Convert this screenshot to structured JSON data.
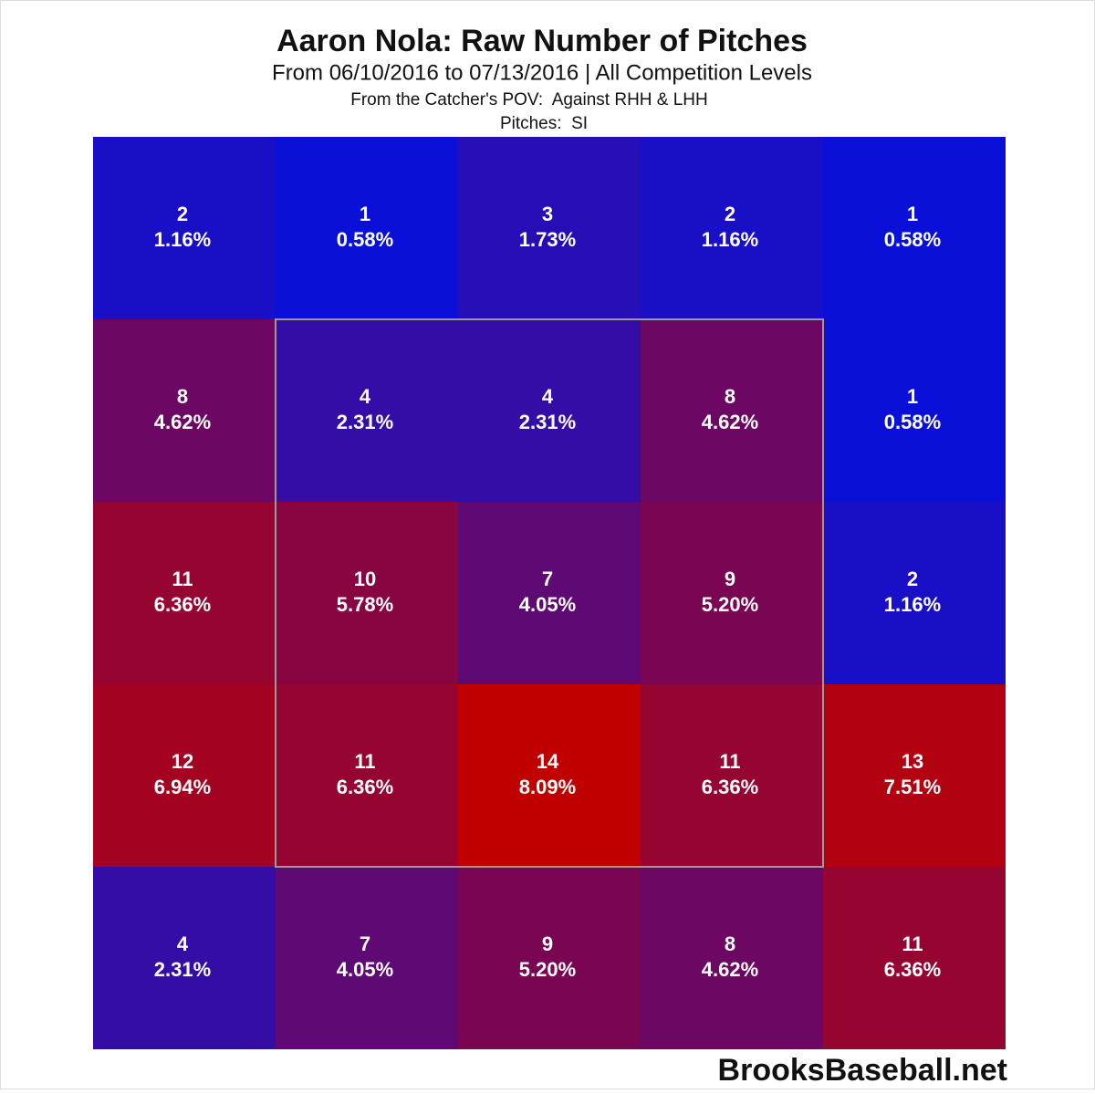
{
  "chart_data": {
    "type": "heatmap",
    "title": "Aaron Nola: Raw Number of Pitches",
    "subtitle": "From 06/10/2016 to 07/13/2016 | All Competition Levels",
    "note_1": "From the Catcher's POV:  Against RHH & LHH",
    "note_2": "Pitches:  SI",
    "source": "BrooksBaseball.net",
    "values": [
      [
        2,
        1,
        3,
        2,
        1
      ],
      [
        8,
        4,
        4,
        8,
        1
      ],
      [
        11,
        10,
        7,
        9,
        2
      ],
      [
        12,
        11,
        14,
        11,
        13
      ],
      [
        4,
        7,
        9,
        8,
        11
      ]
    ],
    "percents": [
      [
        1.16,
        0.58,
        1.73,
        1.16,
        0.58
      ],
      [
        4.62,
        2.31,
        2.31,
        4.62,
        0.58
      ],
      [
        6.36,
        5.78,
        4.05,
        5.2,
        1.16
      ],
      [
        6.94,
        6.36,
        8.09,
        6.36,
        7.51
      ],
      [
        2.31,
        4.05,
        5.2,
        4.62,
        6.36
      ]
    ],
    "percent_labels": [
      [
        "1.16%",
        "0.58%",
        "1.73%",
        "1.16%",
        "0.58%"
      ],
      [
        "4.62%",
        "2.31%",
        "2.31%",
        "4.62%",
        "0.58%"
      ],
      [
        "6.36%",
        "5.78%",
        "4.05%",
        "5.20%",
        "1.16%"
      ],
      [
        "6.94%",
        "6.36%",
        "8.09%",
        "6.36%",
        "7.51%"
      ],
      [
        "2.31%",
        "4.05%",
        "5.20%",
        "4.62%",
        "6.36%"
      ]
    ],
    "color_low": "#0a10d8",
    "color_high": "#c00000"
  }
}
